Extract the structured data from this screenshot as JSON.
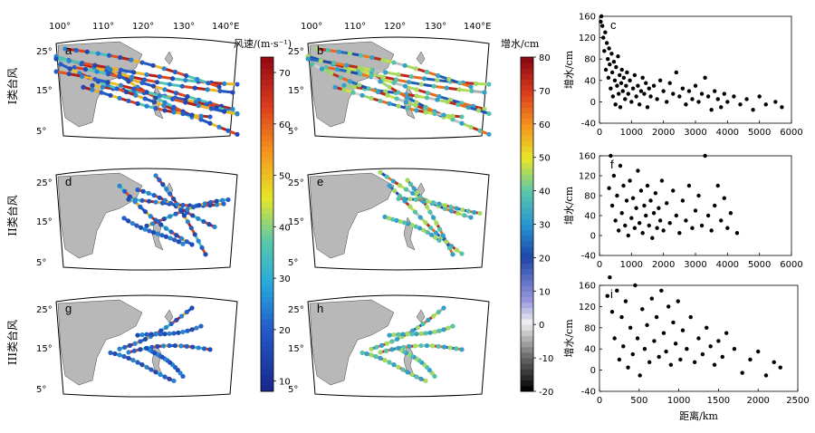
{
  "map_panels": {
    "lon_ticks": [
      "100°",
      "110°",
      "120°",
      "130°",
      "140°E"
    ],
    "lat_ticks": [
      "25°",
      "15°",
      "5°"
    ],
    "panels": [
      {
        "label": "a",
        "row": 0,
        "col": 0
      },
      {
        "label": "b",
        "row": 0,
        "col": 1
      },
      {
        "label": "d",
        "row": 1,
        "col": 0
      },
      {
        "label": "e",
        "row": 1,
        "col": 1
      },
      {
        "label": "g",
        "row": 2,
        "col": 0
      },
      {
        "label": "h",
        "row": 2,
        "col": 1
      }
    ]
  },
  "row_labels": [
    "I类台风",
    "II类台风",
    "III类台风"
  ],
  "colorbars": [
    {
      "title": "风速/(m·s⁻¹)",
      "min": 8,
      "max": 73,
      "ticks": [
        10,
        20,
        30,
        40,
        50,
        60,
        70
      ],
      "scheme": "parula-jet"
    },
    {
      "title": "增水/cm",
      "min": -20,
      "max": 80,
      "ticks": [
        -20,
        -10,
        0,
        10,
        20,
        30,
        40,
        50,
        60,
        70,
        80
      ],
      "scheme": "diverging"
    }
  ],
  "chart_data": [
    {
      "type": "scatter",
      "label": "c",
      "xlabel": "",
      "ylabel": "增水/cm",
      "xlim": [
        0,
        6000
      ],
      "ylim": [
        -40,
        160
      ],
      "xticks": [
        0,
        1000,
        2000,
        3000,
        4000,
        5000,
        6000
      ],
      "yticks": [
        -40,
        0,
        40,
        80,
        120,
        160
      ],
      "points": [
        [
          40,
          150
        ],
        [
          60,
          160
        ],
        [
          90,
          142
        ],
        [
          120,
          120
        ],
        [
          150,
          95
        ],
        [
          180,
          130
        ],
        [
          200,
          60
        ],
        [
          230,
          110
        ],
        [
          260,
          80
        ],
        [
          280,
          45
        ],
        [
          300,
          100
        ],
        [
          320,
          70
        ],
        [
          350,
          25
        ],
        [
          380,
          90
        ],
        [
          400,
          55
        ],
        [
          420,
          10
        ],
        [
          450,
          75
        ],
        [
          480,
          40
        ],
        [
          500,
          -5
        ],
        [
          520,
          65
        ],
        [
          550,
          30
        ],
        [
          580,
          85
        ],
        [
          600,
          15
        ],
        [
          630,
          50
        ],
        [
          650,
          -10
        ],
        [
          680,
          35
        ],
        [
          700,
          60
        ],
        [
          730,
          20
        ],
        [
          760,
          45
        ],
        [
          800,
          5
        ],
        [
          830,
          30
        ],
        [
          860,
          55
        ],
        [
          900,
          15
        ],
        [
          950,
          40
        ],
        [
          1000,
          0
        ],
        [
          1050,
          25
        ],
        [
          1100,
          50
        ],
        [
          1150,
          10
        ],
        [
          1200,
          30
        ],
        [
          1250,
          -5
        ],
        [
          1300,
          20
        ],
        [
          1350,
          45
        ],
        [
          1400,
          15
        ],
        [
          1450,
          35
        ],
        [
          1500,
          -10
        ],
        [
          1550,
          25
        ],
        [
          1600,
          10
        ],
        [
          1700,
          30
        ],
        [
          1800,
          5
        ],
        [
          1900,
          40
        ],
        [
          2000,
          20
        ],
        [
          2100,
          0
        ],
        [
          2200,
          35
        ],
        [
          2300,
          15
        ],
        [
          2400,
          55
        ],
        [
          2500,
          10
        ],
        [
          2600,
          25
        ],
        [
          2700,
          -5
        ],
        [
          2800,
          20
        ],
        [
          2900,
          5
        ],
        [
          3000,
          30
        ],
        [
          3100,
          0
        ],
        [
          3200,
          15
        ],
        [
          3300,
          45
        ],
        [
          3400,
          10
        ],
        [
          3500,
          -15
        ],
        [
          3600,
          20
        ],
        [
          3700,
          5
        ],
        [
          3800,
          -10
        ],
        [
          3900,
          15
        ],
        [
          4000,
          0
        ],
        [
          4200,
          10
        ],
        [
          4400,
          -5
        ],
        [
          4600,
          5
        ],
        [
          4800,
          -15
        ],
        [
          5000,
          10
        ],
        [
          5200,
          -5
        ],
        [
          5500,
          0
        ],
        [
          5700,
          -10
        ]
      ]
    },
    {
      "type": "scatter",
      "label": "f",
      "xlabel": "",
      "ylabel": "增水/cm",
      "xlim": [
        0,
        6000
      ],
      "ylim": [
        -40,
        160
      ],
      "xticks": [
        0,
        1000,
        2000,
        3000,
        4000,
        5000,
        6000
      ],
      "yticks": [
        -40,
        0,
        40,
        80,
        120,
        160
      ],
      "points": [
        [
          300,
          95
        ],
        [
          350,
          160
        ],
        [
          400,
          60
        ],
        [
          450,
          120
        ],
        [
          500,
          30
        ],
        [
          550,
          80
        ],
        [
          600,
          10
        ],
        [
          650,
          140
        ],
        [
          700,
          45
        ],
        [
          750,
          100
        ],
        [
          800,
          20
        ],
        [
          850,
          70
        ],
        [
          900,
          0
        ],
        [
          950,
          110
        ],
        [
          1000,
          35
        ],
        [
          1050,
          75
        ],
        [
          1100,
          15
        ],
        [
          1150,
          55
        ],
        [
          1200,
          130
        ],
        [
          1250,
          25
        ],
        [
          1300,
          90
        ],
        [
          1350,
          5
        ],
        [
          1400,
          60
        ],
        [
          1450,
          40
        ],
        [
          1500,
          100
        ],
        [
          1550,
          20
        ],
        [
          1600,
          70
        ],
        [
          1650,
          -5
        ],
        [
          1700,
          45
        ],
        [
          1750,
          85
        ],
        [
          1800,
          15
        ],
        [
          1850,
          55
        ],
        [
          1900,
          30
        ],
        [
          1950,
          110
        ],
        [
          2000,
          10
        ],
        [
          2100,
          65
        ],
        [
          2200,
          25
        ],
        [
          2300,
          90
        ],
        [
          2400,
          40
        ],
        [
          2500,
          5
        ],
        [
          2600,
          70
        ],
        [
          2700,
          30
        ],
        [
          2800,
          100
        ],
        [
          2900,
          15
        ],
        [
          3000,
          50
        ],
        [
          3100,
          80
        ],
        [
          3200,
          20
        ],
        [
          3300,
          160
        ],
        [
          3400,
          40
        ],
        [
          3500,
          10
        ],
        [
          3600,
          60
        ],
        [
          3700,
          100
        ],
        [
          3800,
          30
        ],
        [
          3900,
          75
        ],
        [
          4000,
          15
        ],
        [
          4100,
          45
        ],
        [
          4300,
          5
        ]
      ]
    },
    {
      "type": "scatter",
      "label": "i",
      "xlabel": "距离/km",
      "ylabel": "增水/cm",
      "xlim": [
        0,
        2500
      ],
      "ylim": [
        -40,
        160
      ],
      "xticks": [
        0,
        500,
        1000,
        1500,
        2000,
        2500
      ],
      "yticks": [
        -40,
        0,
        40,
        80,
        120,
        160
      ],
      "points": [
        [
          100,
          140
        ],
        [
          130,
          175
        ],
        [
          160,
          110
        ],
        [
          190,
          60
        ],
        [
          220,
          150
        ],
        [
          250,
          20
        ],
        [
          280,
          100
        ],
        [
          300,
          45
        ],
        [
          330,
          130
        ],
        [
          360,
          5
        ],
        [
          390,
          80
        ],
        [
          420,
          30
        ],
        [
          450,
          160
        ],
        [
          480,
          60
        ],
        [
          510,
          -10
        ],
        [
          540,
          115
        ],
        [
          570,
          40
        ],
        [
          600,
          85
        ],
        [
          630,
          15
        ],
        [
          660,
          135
        ],
        [
          690,
          55
        ],
        [
          720,
          100
        ],
        [
          750,
          25
        ],
        [
          780,
          150
        ],
        [
          810,
          70
        ],
        [
          840,
          35
        ],
        [
          870,
          120
        ],
        [
          900,
          10
        ],
        [
          930,
          90
        ],
        [
          960,
          50
        ],
        [
          990,
          130
        ],
        [
          1020,
          20
        ],
        [
          1050,
          75
        ],
        [
          1100,
          40
        ],
        [
          1150,
          100
        ],
        [
          1200,
          15
        ],
        [
          1250,
          60
        ],
        [
          1300,
          30
        ],
        [
          1350,
          80
        ],
        [
          1400,
          45
        ],
        [
          1450,
          10
        ],
        [
          1500,
          55
        ],
        [
          1550,
          25
        ],
        [
          1600,
          70
        ],
        [
          1700,
          40
        ],
        [
          1800,
          -5
        ],
        [
          1900,
          20
        ],
        [
          2000,
          35
        ],
        [
          2100,
          -10
        ],
        [
          2200,
          15
        ],
        [
          2280,
          5
        ]
      ]
    }
  ]
}
